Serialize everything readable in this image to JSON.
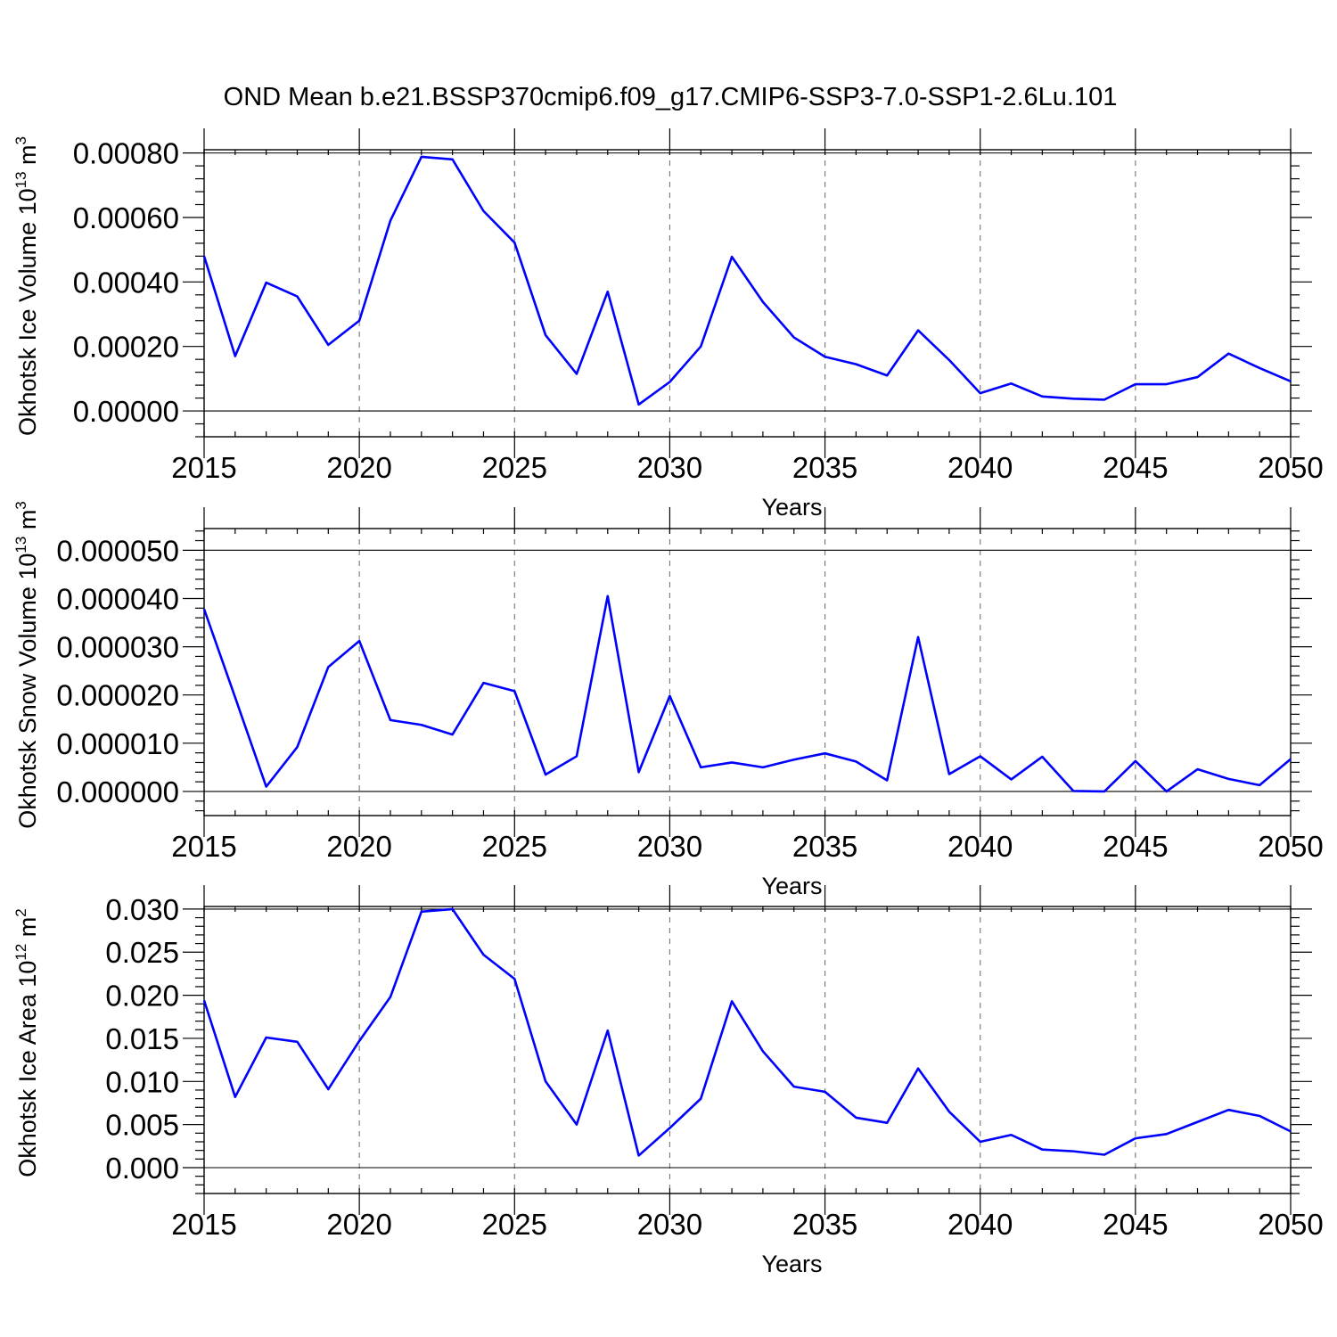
{
  "title": "OND Mean b.e21.BSSP370cmip6.f09_g17.CMIP6-SSP3-7.0-SSP1-2.6Lu.101",
  "colors": {
    "line": "#0000ff",
    "grid": "#777777",
    "axis": "#000000"
  },
  "chart_data": [
    {
      "type": "line",
      "ylabel": {
        "text": "Okhotsk Ice Volume 10",
        "sup1": "13",
        "mid": " m",
        "sup2": "3"
      },
      "xlabel": "Years",
      "xlim": [
        2015,
        2050
      ],
      "ylim": [
        -8e-05,
        0.00081
      ],
      "ydecimals": 5,
      "x_ticks": [
        2015,
        2020,
        2025,
        2030,
        2035,
        2040,
        2045,
        2050
      ],
      "y_ticks": [
        0.0,
        0.0002,
        0.0004,
        0.0006,
        0.0008
      ],
      "y_tick_labels": [
        "0.00000",
        "0.00020",
        "0.00040",
        "0.00060",
        "0.00080"
      ],
      "x_grid": true,
      "x": [
        2015,
        2016,
        2017,
        2018,
        2019,
        2020,
        2021,
        2022,
        2023,
        2024,
        2025,
        2026,
        2027,
        2028,
        2029,
        2030,
        2031,
        2032,
        2033,
        2034,
        2035,
        2036,
        2037,
        2038,
        2039,
        2040,
        2041,
        2042,
        2043,
        2044,
        2045,
        2046,
        2047,
        2048,
        2049,
        2050
      ],
      "series": [
        {
          "values": [
            0.00048,
            0.00017,
            0.000398,
            0.000355,
            0.000205,
            0.00028,
            0.00059,
            0.000788,
            0.00078,
            0.00062,
            0.000522,
            0.000235,
            0.000115,
            0.00037,
            2e-05,
            9e-05,
            0.0002,
            0.000478,
            0.000338,
            0.000228,
            0.000168,
            0.000145,
            0.00011,
            0.00025,
            0.000158,
            5.5e-05,
            8.5e-05,
            4.5e-05,
            3.8e-05,
            3.5e-05,
            8.3e-05,
            8.3e-05,
            0.000105,
            0.000178,
            0.000133,
            9.2e-05
          ]
        }
      ]
    },
    {
      "type": "line",
      "ylabel": {
        "text": "Okhotsk Snow Volume 10",
        "sup1": "13",
        "mid": " m",
        "sup2": "3"
      },
      "xlabel": "Years",
      "xlim": [
        2015,
        2050
      ],
      "ylim": [
        -5e-06,
        5.45e-05
      ],
      "ydecimals": 6,
      "x_ticks": [
        2015,
        2020,
        2025,
        2030,
        2035,
        2040,
        2045,
        2050
      ],
      "y_ticks": [
        0.0,
        1e-05,
        2e-05,
        3e-05,
        4e-05,
        5e-05
      ],
      "y_tick_labels": [
        "0.000000",
        "0.000010",
        "0.000020",
        "0.000030",
        "0.000040",
        "0.000050"
      ],
      "x_grid": true,
      "x": [
        2015,
        2016,
        2017,
        2018,
        2019,
        2020,
        2021,
        2022,
        2023,
        2024,
        2025,
        2026,
        2027,
        2028,
        2029,
        2030,
        2031,
        2032,
        2033,
        2034,
        2035,
        2036,
        2037,
        2038,
        2039,
        2040,
        2041,
        2042,
        2043,
        2044,
        2045,
        2046,
        2047,
        2048,
        2049,
        2050
      ],
      "series": [
        {
          "values": [
            3.78e-05,
            1.95e-05,
            1e-06,
            9.2e-06,
            2.58e-05,
            3.12e-05,
            1.48e-05,
            1.38e-05,
            1.18e-05,
            2.25e-05,
            2.08e-05,
            3.5e-06,
            7.3e-06,
            4.05e-05,
            4e-06,
            1.98e-05,
            5e-06,
            6e-06,
            5e-06,
            6.6e-06,
            7.9e-06,
            6.2e-06,
            2.3e-06,
            3.2e-05,
            3.6e-06,
            7.3e-06,
            2.5e-06,
            7.2e-06,
            1e-07,
            0.0,
            6.3e-06,
            0.0,
            4.6e-06,
            2.6e-06,
            1.3e-06,
            6.7e-06
          ]
        }
      ]
    },
    {
      "type": "line",
      "ylabel": {
        "text": "Okhotsk Ice Area 10",
        "sup1": "12",
        "mid": " m",
        "sup2": "2"
      },
      "xlabel": "Years",
      "xlim": [
        2015,
        2050
      ],
      "ylim": [
        -0.003,
        0.0303
      ],
      "ydecimals": 3,
      "x_ticks": [
        2015,
        2020,
        2025,
        2030,
        2035,
        2040,
        2045,
        2050
      ],
      "y_ticks": [
        0.0,
        0.005,
        0.01,
        0.015,
        0.02,
        0.025,
        0.03
      ],
      "y_tick_labels": [
        "0.000",
        "0.005",
        "0.010",
        "0.015",
        "0.020",
        "0.025",
        "0.030"
      ],
      "x_grid": true,
      "x": [
        2015,
        2016,
        2017,
        2018,
        2019,
        2020,
        2021,
        2022,
        2023,
        2024,
        2025,
        2026,
        2027,
        2028,
        2029,
        2030,
        2031,
        2032,
        2033,
        2034,
        2035,
        2036,
        2037,
        2038,
        2039,
        2040,
        2041,
        2042,
        2043,
        2044,
        2045,
        2046,
        2047,
        2048,
        2049,
        2050
      ],
      "series": [
        {
          "values": [
            0.0194,
            0.0082,
            0.0151,
            0.0146,
            0.0091,
            0.0147,
            0.0198,
            0.0297,
            0.03,
            0.0247,
            0.0219,
            0.01,
            0.005,
            0.0159,
            0.0014,
            0.0046,
            0.008,
            0.0193,
            0.0135,
            0.0094,
            0.0088,
            0.0058,
            0.0052,
            0.0115,
            0.0065,
            0.003,
            0.0038,
            0.0021,
            0.0019,
            0.0015,
            0.0034,
            0.0039,
            0.0053,
            0.0067,
            0.006,
            0.0042
          ]
        }
      ]
    }
  ]
}
